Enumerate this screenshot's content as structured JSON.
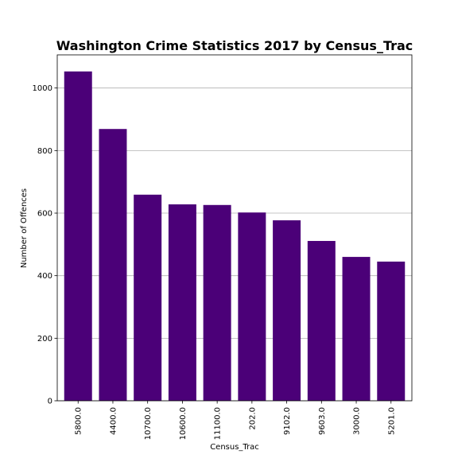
{
  "chart_data": {
    "type": "bar",
    "title": "Washington Crime Statistics 2017 by Census_Trac",
    "xlabel": "Census_Trac",
    "ylabel": "Number of Offences",
    "categories": [
      "5800.0",
      "4400.0",
      "10700.0",
      "10600.0",
      "11100.0",
      "202.0",
      "9102.0",
      "9603.0",
      "3000.0",
      "5201.0"
    ],
    "values": [
      1053,
      869,
      659,
      628,
      626,
      602,
      577,
      511,
      460,
      445
    ],
    "ylim": [
      0,
      1106
    ],
    "yticks": [
      0,
      200,
      400,
      600,
      800,
      1000
    ],
    "grid": "y",
    "bar_color": "#4b0078"
  }
}
